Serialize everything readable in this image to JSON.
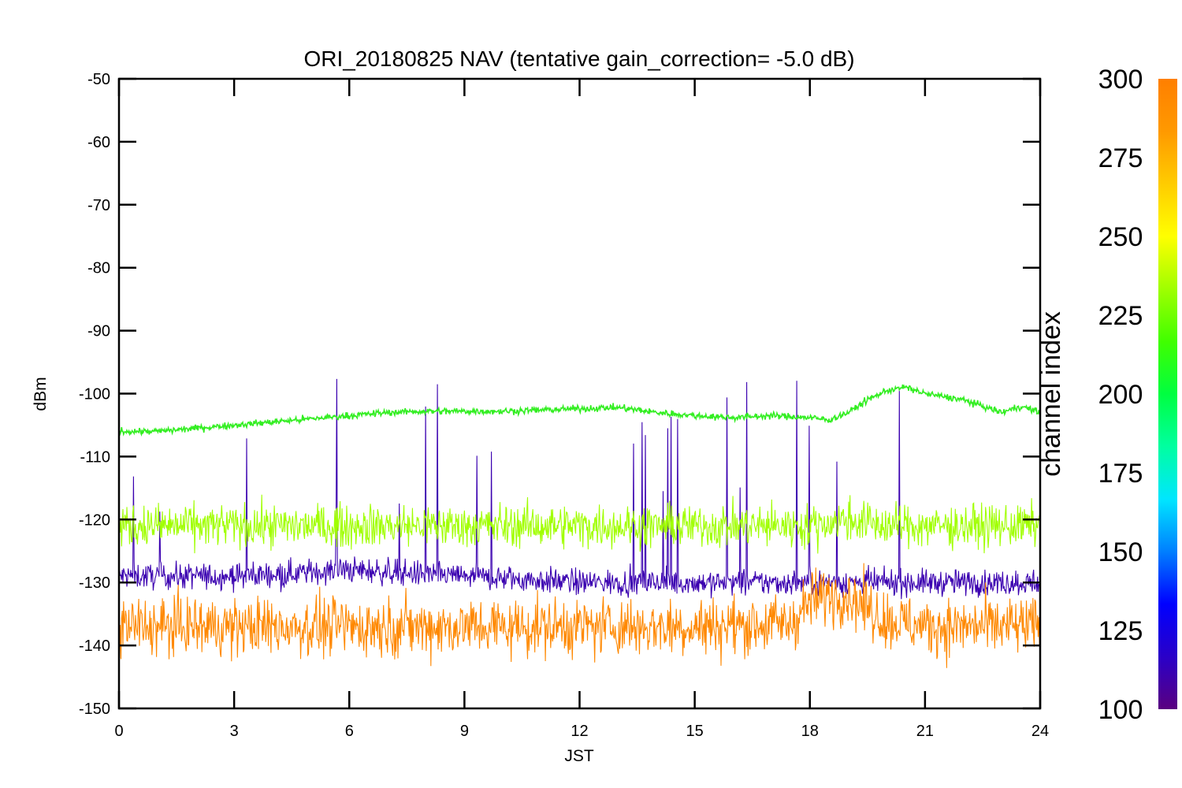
{
  "chart_data": {
    "type": "line",
    "title": "ORI_20180825 NAV (tentative gain_correction= -5.0 dB)",
    "xlabel": "JST",
    "ylabel": "dBm",
    "xlim": [
      0,
      24
    ],
    "ylim": [
      -150,
      -50
    ],
    "x_ticks": [
      0,
      3,
      6,
      9,
      12,
      15,
      18,
      21,
      24
    ],
    "y_ticks": [
      -50,
      -60,
      -70,
      -80,
      -90,
      -100,
      -110,
      -120,
      -130,
      -140,
      -150
    ],
    "grid": false,
    "colorbar": {
      "label": "channel index",
      "range": [
        100,
        300
      ],
      "ticks": [
        300,
        275,
        250,
        225,
        200,
        175,
        150,
        125,
        100
      ],
      "colors": [
        "#5a0080",
        "#2a00c8",
        "#0000ff",
        "#007fff",
        "#00e6ff",
        "#00ffa0",
        "#00ff40",
        "#40ff00",
        "#a0ff00",
        "#ffff00",
        "#ffcc00",
        "#ff9900",
        "#ff7f00"
      ]
    },
    "series": [
      {
        "color": "#33ee22",
        "channel": 240,
        "x": [
          0,
          1,
          2,
          3,
          4,
          5,
          6,
          7,
          8,
          9,
          10,
          11,
          12,
          13,
          14,
          15,
          16,
          17,
          18,
          18.5,
          19,
          19.5,
          20,
          20.5,
          21,
          21.5,
          22,
          22.5,
          23,
          23.5,
          24
        ],
        "y": [
          -106,
          -106,
          -105.5,
          -105,
          -104.5,
          -104,
          -103.5,
          -103,
          -102.8,
          -102.8,
          -102.8,
          -102.6,
          -102.4,
          -102.2,
          -103,
          -103.5,
          -103.8,
          -103.5,
          -103.8,
          -104.2,
          -103,
          -101,
          -99.5,
          -99,
          -100,
          -100.5,
          -101,
          -102,
          -103,
          -102,
          -103
        ]
      },
      {
        "color": "#a0ff00",
        "channel": 255,
        "x": [
          0,
          3,
          6,
          9,
          12,
          15,
          18,
          19,
          20,
          21,
          24
        ],
        "y": [
          -121,
          -121,
          -121,
          -121,
          -121,
          -121,
          -121,
          -120,
          -121,
          -121,
          -121
        ]
      },
      {
        "color": "#ff8800",
        "channel": 295,
        "x": [
          0,
          3,
          6,
          9,
          12,
          15,
          17.5,
          18,
          18.5,
          19,
          19.5,
          20,
          21,
          24
        ],
        "y": [
          -137,
          -137,
          -137,
          -137,
          -137,
          -137,
          -136.5,
          -133,
          -132,
          -132,
          -134,
          -136,
          -137,
          -137
        ]
      },
      {
        "color": "#3a00b0",
        "channel": 115,
        "x": [
          0,
          3,
          6,
          9,
          12,
          15,
          18,
          21,
          24
        ],
        "y": [
          -129,
          -129,
          -128,
          -129,
          -130,
          -130,
          -130,
          -130,
          -130
        ]
      }
    ]
  }
}
